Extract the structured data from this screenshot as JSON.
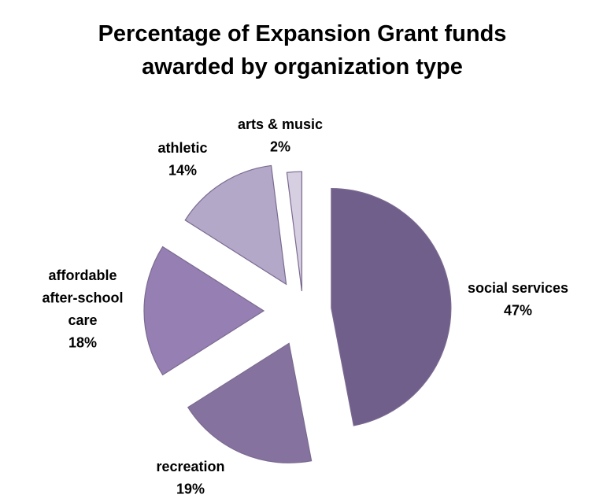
{
  "chart_data": {
    "type": "pie",
    "title_lines": [
      "Percentage of Expansion Grant funds",
      "awarded by organization type"
    ],
    "unit": "%",
    "slices": [
      {
        "name": "social services",
        "label_lines": [
          "social services",
          "47%"
        ],
        "value": 47,
        "color": "#705e8b",
        "exploded": false
      },
      {
        "name": "recreation",
        "label_lines": [
          "recreation",
          "19%"
        ],
        "value": 19,
        "color": "#85729f",
        "exploded": true
      },
      {
        "name": "affordable after-school care",
        "label_lines": [
          "affordable",
          "after-school",
          "care",
          "18%"
        ],
        "value": 18,
        "color": "#967fb2",
        "exploded": true
      },
      {
        "name": "athletic",
        "label_lines": [
          "athletic",
          "14%"
        ],
        "value": 14,
        "color": "#b3a8c8",
        "exploded": true
      },
      {
        "name": "arts & music",
        "label_lines": [
          "arts & music",
          "2%"
        ],
        "value": 2,
        "color": "#d6cfe1",
        "exploded": true
      }
    ],
    "start": "12 o'clock",
    "direction": "clockwise",
    "legend": "none"
  }
}
